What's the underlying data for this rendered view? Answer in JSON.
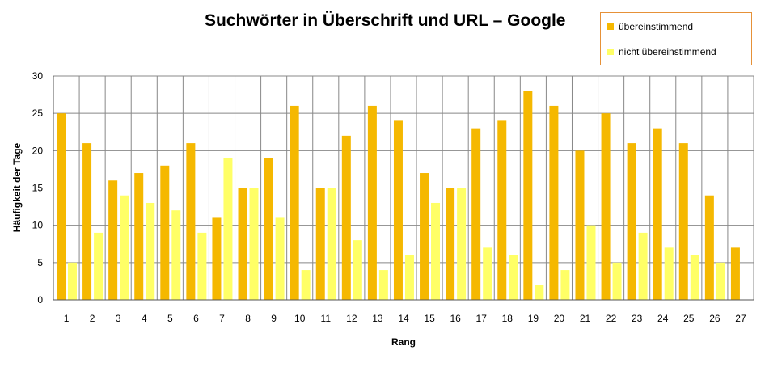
{
  "chart_data": {
    "type": "bar",
    "title": "Suchwörter in Überschrift und URL – Google",
    "xlabel": "Rang",
    "ylabel": "Häufigkeit der Tage",
    "categories": [
      "1",
      "2",
      "3",
      "4",
      "5",
      "6",
      "7",
      "8",
      "9",
      "10",
      "11",
      "12",
      "13",
      "14",
      "15",
      "16",
      "17",
      "18",
      "19",
      "20",
      "21",
      "22",
      "23",
      "24",
      "25",
      "26",
      "27"
    ],
    "series": [
      {
        "name": "übereinstimmend",
        "color": "#f5b800",
        "values": [
          25,
          21,
          16,
          17,
          18,
          21,
          11,
          15,
          19,
          26,
          15,
          22,
          26,
          24,
          17,
          15,
          23,
          24,
          28,
          26,
          20,
          25,
          21,
          23,
          21,
          14,
          7
        ]
      },
      {
        "name": "nicht übereinstimmend",
        "color": "#ffff66",
        "values": [
          5,
          9,
          14,
          13,
          12,
          9,
          19,
          15,
          11,
          4,
          15,
          8,
          4,
          6,
          13,
          15,
          7,
          6,
          2,
          4,
          10,
          5,
          9,
          7,
          6,
          5,
          null
        ]
      }
    ],
    "ylim": [
      0,
      30
    ],
    "yticks": [
      0,
      5,
      10,
      15,
      20,
      25,
      30
    ],
    "grid": "vertical and horizontal",
    "legend_position": "top-right"
  }
}
